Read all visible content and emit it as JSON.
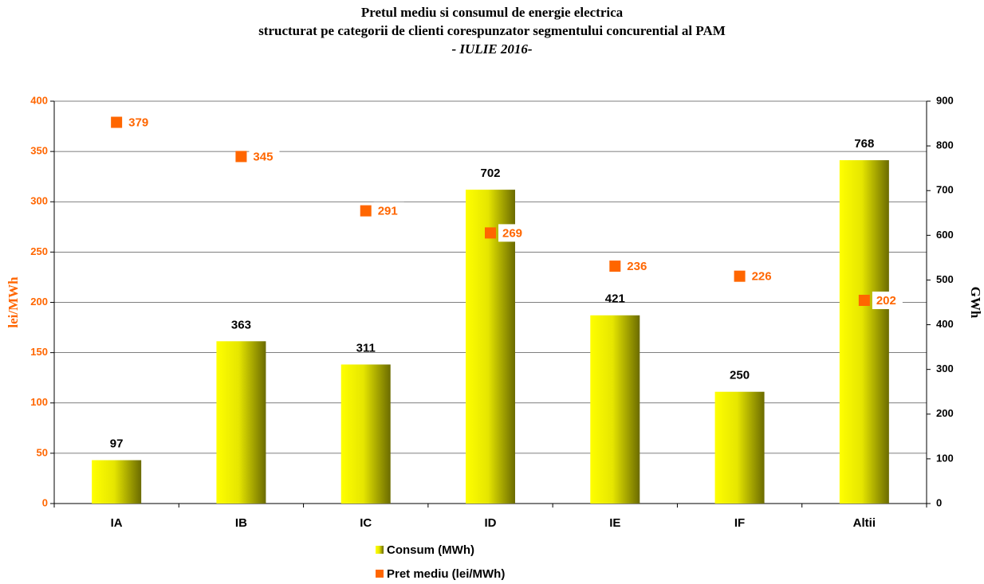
{
  "chart_data": {
    "type": "combo",
    "title": [
      "Pretul mediu si consumul de energie electrica",
      "structurat pe categorii de clienti corespunzator segmentului  concurential al PAM",
      "- IULIE 2016-"
    ],
    "y_label": "lei/MWh",
    "y2_label": "GWh",
    "categories": [
      "IA",
      "IB",
      "IC",
      "ID",
      "IE",
      "IF",
      "Altii"
    ],
    "series": [
      {
        "name": "Consum (MWh)",
        "type": "bar",
        "axis": "y2",
        "color": "#ffff00",
        "values": [
          97,
          363,
          311,
          702,
          421,
          250,
          768
        ]
      },
      {
        "name": "Pret mediu (lei/MWh)",
        "type": "scatter",
        "axis": "y",
        "color": "#ff6600",
        "values": [
          379,
          345,
          291,
          269,
          236,
          226,
          202
        ]
      }
    ],
    "ylim": [
      0,
      400
    ],
    "yticks": [
      0,
      50,
      100,
      150,
      200,
      250,
      300,
      350,
      400
    ],
    "y2lim": [
      0,
      900
    ],
    "y2ticks": [
      0,
      100,
      200,
      300,
      400,
      500,
      600,
      700,
      800,
      900
    ],
    "y_color": "#ff6600",
    "grid": true,
    "legend": "bottom"
  }
}
